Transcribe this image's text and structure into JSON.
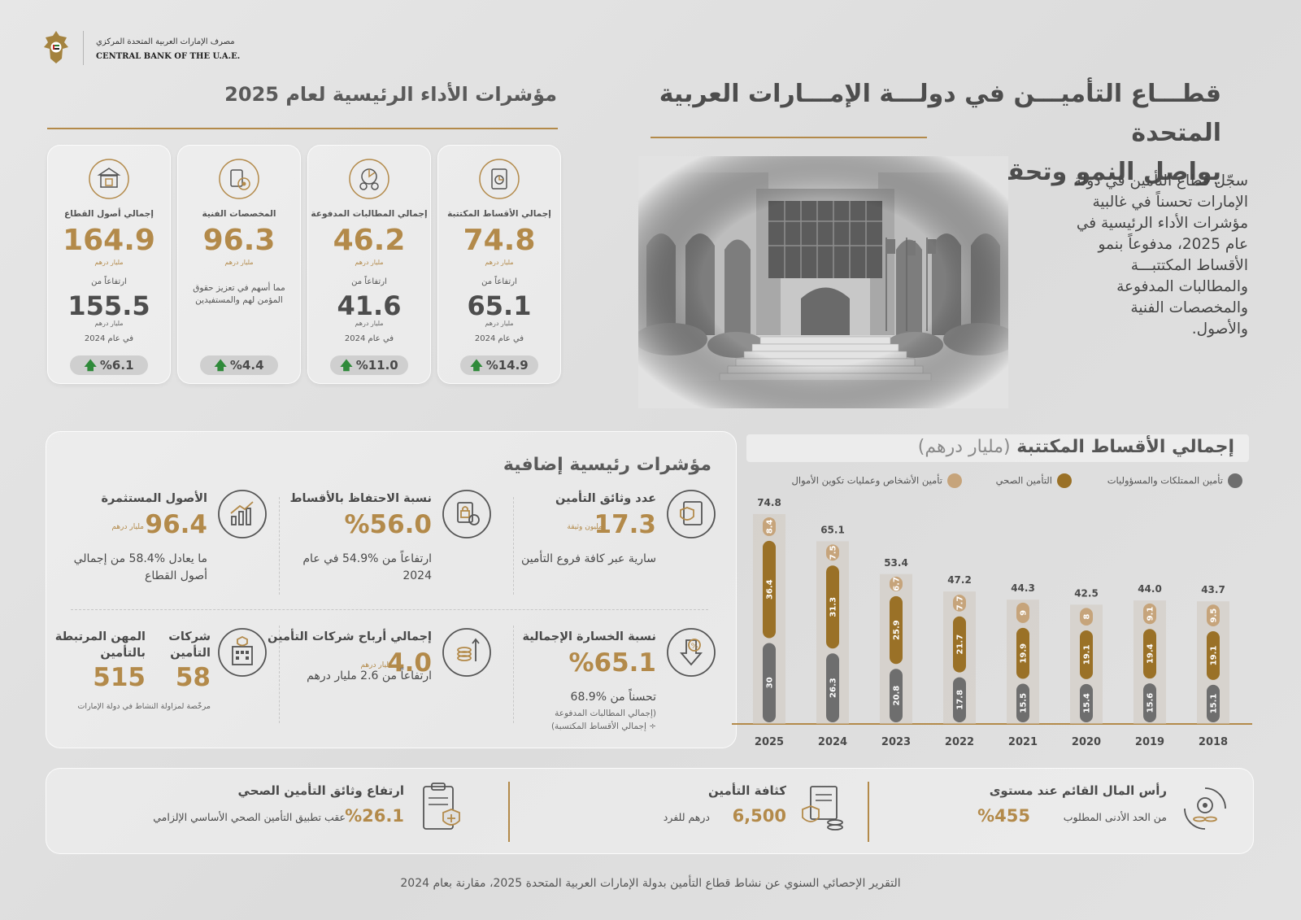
{
  "header": {
    "logo_ar": "مصرف الإمارات العربية المتحدة المركزي",
    "logo_en": "CENTRAL BANK OF THE U.A.E."
  },
  "title": {
    "line1": "قطـــاع التأميـــن في دولـــة الإمـــارات العربية المتحدة",
    "line2": "يواصل النمو وتحقيق النتائج"
  },
  "intro": "سجّل قطاع التأمين في دولة الإمارات تحسناً في غالبية مؤشرات الأداء الرئيسية في عام 2025، مدفوعاً بنمو الأقساط المكتتبـــة والمطالبات المدفوعة والمخصصات الفنية والأصول.",
  "kpi": {
    "heading": "مؤشرات الأداء الرئيسية لعام 2025",
    "cards": [
      {
        "label": "إجمالي الأقساط المكتتبة",
        "value": "74.8",
        "unit": "مليار درهم",
        "rise": "ارتفاعاً من",
        "prev": "65.1",
        "unit2": "مليار درهم",
        "year": "في عام 2024",
        "change": "%14.9"
      },
      {
        "label": "إجمالي المطالبات المدفوعة",
        "value": "46.2",
        "unit": "مليار درهم",
        "rise": "ارتفاعاً من",
        "prev": "41.6",
        "unit2": "مليار درهم",
        "year": "في عام 2024",
        "change": "%11.0"
      },
      {
        "label": "المخصصات الفنية",
        "value": "96.3",
        "unit": "مليار درهم",
        "note": "مما أسهم في تعزيز حقوق المؤمن لهم والمستفيدين",
        "change": "%4.4"
      },
      {
        "label": "إجمالي أصول القطاع",
        "value": "164.9",
        "unit": "مليار درهم",
        "rise": "ارتفاعاً من",
        "prev": "155.5",
        "unit2": "مليار درهم",
        "year": "في عام 2024",
        "change": "%6.1"
      }
    ]
  },
  "additional": {
    "heading": "مؤشرات رئيسية إضافية",
    "policies": {
      "title": "عدد وثائق التأمين",
      "value": "17.3",
      "unit": "مليون وثيقة",
      "desc": "سارية عبر كافة فروع التأمين"
    },
    "retention": {
      "title": "نسبة الاحتفاظ بالأقساط",
      "value": "%56.0",
      "desc": "ارتفاعاً من %54.9 في عام 2024"
    },
    "invested": {
      "title": "الأصول المستثمرة",
      "value": "96.4",
      "unit": "مليار درهم",
      "desc": "ما يعادل %58.4 من إجمالي أصول القطاع"
    },
    "loss": {
      "title": "نسبة الخسارة الإجمالية",
      "value": "%65.1",
      "desc": "تحسناً من %68.9",
      "sub1": "(إجمالي المطالبات المدفوعة",
      "sub2": "÷ إجمالي الأقساط المكتسبة)"
    },
    "profits": {
      "title": "إجمالي أرباح شركات التأمين",
      "value": "4.0",
      "unit": "مليار درهم",
      "desc": "ارتفاعاً من 2.6 مليار درهم"
    },
    "companies": {
      "t1": "شركات التأمين",
      "v1": "58",
      "t2": "المهن المرتبطة بالتأمين",
      "v2": "515",
      "sub": "مرخّصة لمزاولة النشاط في دولة الإمارات"
    }
  },
  "chart_data": {
    "type": "bar",
    "title": "إجمالي الأقساط المكتتبة",
    "title_unit": "(مليار درهم)",
    "categories": [
      "2025",
      "2024",
      "2023",
      "2022",
      "2021",
      "2020",
      "2019",
      "2018"
    ],
    "totals": [
      74.8,
      65.1,
      53.4,
      47.2,
      44.3,
      42.5,
      44.0,
      43.7
    ],
    "series": [
      {
        "name": "تأمين الممتلكات والمسؤوليات",
        "color": "#6e6e6e",
        "values": [
          30.0,
          26.3,
          20.8,
          17.8,
          15.5,
          15.4,
          15.6,
          15.1
        ]
      },
      {
        "name": "التأمين الصحي",
        "color": "#9a7127",
        "values": [
          36.4,
          31.3,
          25.9,
          21.7,
          19.9,
          19.1,
          19.4,
          19.1
        ]
      },
      {
        "name": "تأمين الأشخاص وعمليات تكوين الأموال",
        "color": "#c6a47b",
        "values": [
          8.4,
          7.5,
          6.7,
          7.7,
          9,
          8,
          9.1,
          9.5
        ]
      }
    ]
  },
  "strip": {
    "capital": {
      "title": "رأس المال القائم عند مستوى",
      "value": "%455",
      "desc": "من الحد الأدنى المطلوب"
    },
    "density": {
      "title": "كثافة التأمين",
      "value": "6,500",
      "desc": "درهم للفرد"
    },
    "health": {
      "title": "ارتفاع وثائق التأمين الصحي",
      "value": "%26.1",
      "desc": "عقب تطبيق التأمين الصحي الأساسي الإلزامي"
    }
  },
  "footer": "التقرير الإحصائي السنوي عن نشاط قطاع التأمين بدولة الإمارات العربية المتحدة 2025، مقارنة بعام 2024"
}
